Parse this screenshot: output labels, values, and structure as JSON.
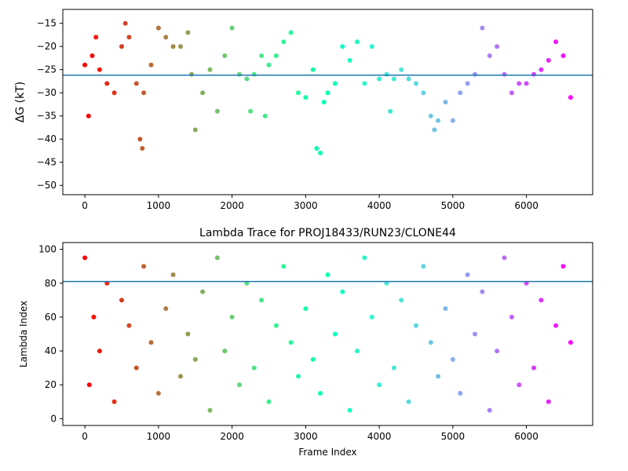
{
  "chart_data": [
    {
      "type": "scatter",
      "title": "",
      "xlabel": "",
      "ylabel": "ΔG (kT)",
      "xlim": [
        -300,
        6900
      ],
      "ylim": [
        -52,
        -12
      ],
      "xticks": [
        0,
        1000,
        2000,
        3000,
        4000,
        5000,
        6000
      ],
      "yticks": [
        -50,
        -45,
        -40,
        -35,
        -30,
        -25,
        -20,
        -15
      ],
      "hline": -26.2,
      "hline_color": "#1f77b4",
      "colormap": "rainbow",
      "series": [
        {
          "x": [
            0,
            50,
            100,
            150,
            200,
            300,
            400,
            500,
            550,
            600,
            700,
            750,
            780,
            800,
            900,
            1000,
            1100,
            1200,
            1300,
            1400,
            1450,
            1500,
            1600,
            1700,
            1800,
            1900,
            2000,
            2100,
            2200,
            2250,
            2300,
            2400,
            2450,
            2500,
            2600,
            2700,
            2800,
            2900,
            3000,
            3100,
            3150,
            3200,
            3250,
            3300,
            3400,
            3500,
            3600,
            3700,
            3800,
            3900,
            4000,
            4100,
            4150,
            4200,
            4300,
            4400,
            4500,
            4600,
            4700,
            4750,
            4800,
            4900,
            5000,
            5100,
            5200,
            5300,
            5400,
            5500,
            5600,
            5700,
            5800,
            5900,
            6000,
            6100,
            6200,
            6300,
            6400,
            6500,
            6600
          ],
          "y": [
            -24,
            -35,
            -22,
            -18,
            -25,
            -28,
            -30,
            -20,
            -15,
            -18,
            -28,
            -40,
            -42,
            -30,
            -24,
            -16,
            -18,
            -20,
            -20,
            -17,
            -26,
            -38,
            -30,
            -25,
            -34,
            -22,
            -16,
            -26,
            -27,
            -34,
            -26,
            -22,
            -35,
            -24,
            -22,
            -19,
            -17,
            -30,
            -31,
            -25,
            -42,
            -43,
            -32,
            -30,
            -28,
            -20,
            -23,
            -19,
            -28,
            -20,
            -27,
            -26,
            -34,
            -27,
            -25,
            -27,
            -28,
            -30,
            -35,
            -38,
            -36,
            -32,
            -36,
            -30,
            -28,
            -26,
            -16,
            -22,
            -20,
            -26,
            -30,
            -28,
            -28,
            -26,
            -25,
            -23,
            -19,
            -22,
            -31
          ]
        }
      ]
    },
    {
      "type": "scatter",
      "title": "Lambda Trace for PROJ18433/RUN23/CLONE44",
      "xlabel": "Frame Index",
      "ylabel": "Lambda Index",
      "xlim": [
        -300,
        6900
      ],
      "ylim": [
        -4,
        104
      ],
      "xticks": [
        0,
        1000,
        2000,
        3000,
        4000,
        5000,
        6000
      ],
      "yticks": [
        0,
        20,
        40,
        60,
        80,
        100
      ],
      "hline": 81,
      "hline_color": "#1f77b4",
      "colormap": "rainbow",
      "series": [
        {
          "x": [
            0,
            60,
            120,
            200,
            300,
            400,
            500,
            600,
            700,
            800,
            900,
            1000,
            1100,
            1200,
            1300,
            1400,
            1500,
            1600,
            1700,
            1800,
            1900,
            2000,
            2100,
            2200,
            2300,
            2400,
            2500,
            2600,
            2700,
            2800,
            2900,
            3000,
            3100,
            3200,
            3300,
            3400,
            3500,
            3600,
            3700,
            3800,
            3900,
            4000,
            4100,
            4200,
            4300,
            4400,
            4500,
            4600,
            4700,
            4800,
            4900,
            5000,
            5100,
            5200,
            5300,
            5400,
            5500,
            5600,
            5700,
            5800,
            5900,
            6000,
            6100,
            6200,
            6300,
            6400,
            6500,
            6600
          ],
          "y": [
            95,
            20,
            60,
            40,
            80,
            10,
            70,
            55,
            30,
            90,
            45,
            15,
            65,
            85,
            25,
            50,
            35,
            75,
            5,
            95,
            40,
            60,
            20,
            80,
            30,
            70,
            10,
            55,
            90,
            45,
            25,
            65,
            35,
            15,
            85,
            50,
            75,
            5,
            40,
            95,
            60,
            20,
            80,
            30,
            70,
            10,
            55,
            90,
            45,
            25,
            65,
            35,
            15,
            85,
            50,
            75,
            5,
            40,
            95,
            60,
            20,
            80,
            30,
            70,
            10,
            55,
            90,
            45
          ]
        }
      ]
    }
  ]
}
